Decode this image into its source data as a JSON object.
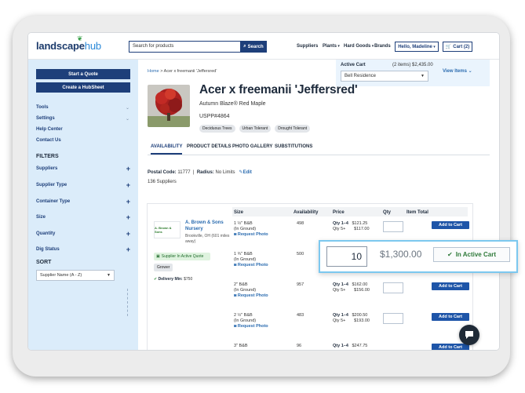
{
  "header": {
    "logo_text": "landscape",
    "logo_hub": "hub",
    "search_placeholder": "Search for products",
    "search_button": "Search",
    "nav": [
      "Suppliers",
      "Plants",
      "Hard Goods",
      "Brands"
    ],
    "user_menu": "Hello, Madeline",
    "cart_label": "Cart (2)"
  },
  "active_cart": {
    "label": "Active Cart",
    "summary": "(2 items) $2,435.00",
    "selected": "Bell Residence",
    "view_items": "View Items"
  },
  "sidebar": {
    "start_quote": "Start a Quote",
    "create_hubsheet": "Create a HubSheet",
    "links": [
      "Tools",
      "Settings",
      "Help Center",
      "Contact Us"
    ],
    "filters_title": "FILTERS",
    "filters": [
      "Suppliers",
      "Supplier Type",
      "Container Type",
      "Size",
      "Quantity",
      "Dig Status"
    ],
    "sort_title": "SORT",
    "sort_selected": "Supplier Name (A - Z)"
  },
  "breadcrumb": {
    "home": "Home",
    "separator": ">",
    "current": "Acer x freemanii 'Jeffersred'"
  },
  "product": {
    "title": "Acer x freemanii 'Jeffersred'",
    "subtitle": "Autumn Blaze® Red Maple",
    "uspp": "USPP#4864",
    "tags": [
      "Deciduous Trees",
      "Urban Tolerant",
      "Drought Tolerant"
    ]
  },
  "tabs": [
    "AVAILABILITY",
    "PRODUCT DETAILS",
    "PHOTO GALLERY",
    "SUBSTITUTIONS"
  ],
  "location": {
    "postal_label": "Postal Code:",
    "postal_value": "11777",
    "radius_label": "Radius:",
    "radius_value": "No Limits",
    "edit": "Edit",
    "supplier_count": "136 Suppliers"
  },
  "table": {
    "headers": [
      "Size",
      "Availability",
      "Price",
      "Qty",
      "Item Total"
    ],
    "supplier": {
      "logo_text": "A. Brown & Sons",
      "name": "A. Brown & Sons Nursery",
      "location": "Brookville, OH",
      "distance": "(601 miles away)",
      "active_quote": "Supplier In Active Quote",
      "type": "Grower",
      "delivery_label": "Delivery Min:",
      "delivery_value": "$750"
    },
    "rows": [
      {
        "size": "1 ½\" B&B",
        "ground": "(In Ground)",
        "photo": "Request Photo",
        "availability": "498",
        "qty_a": "Qty 1–4",
        "price_a": "$121.25",
        "qty_b": "Qty 5+",
        "price_b": "$117.00",
        "button": "Add to Cart"
      },
      {
        "size": "1 ¾\" B&B",
        "ground": "(In Ground)",
        "photo": "Request Photo",
        "availability": "500",
        "qty_a": "",
        "price_a": "",
        "qty_b": "",
        "price_b": "",
        "button": ""
      },
      {
        "size": "2\" B&B",
        "ground": "(In Ground)",
        "photo": "Request Photo",
        "availability": "957",
        "qty_a": "Qty 1–4",
        "price_a": "$162.00",
        "qty_b": "Qty 5+",
        "price_b": "$156.00",
        "button": "Add to Cart"
      },
      {
        "size": "2 ½\" B&B",
        "ground": "(In Ground)",
        "photo": "Request Photo",
        "availability": "483",
        "qty_a": "Qty 1–4",
        "price_a": "$200.50",
        "qty_b": "Qty 5+",
        "price_b": "$193.00",
        "button": "Add to Cart"
      },
      {
        "size": "3\" B&B",
        "ground": "",
        "photo": "",
        "availability": "96",
        "qty_a": "Qty 1–4",
        "price_a": "$247.75",
        "qty_b": "",
        "price_b": "",
        "button": "Add to Cart"
      }
    ]
  },
  "callout": {
    "qty": "10",
    "total": "$1,300.00",
    "button": "In Active Cart"
  },
  "colors": {
    "brand": "#1e3f7a",
    "sidebar_bg": "#dbecfa",
    "callout_border": "#7cc8ef",
    "in_cart_green": "#2f7a3a"
  }
}
